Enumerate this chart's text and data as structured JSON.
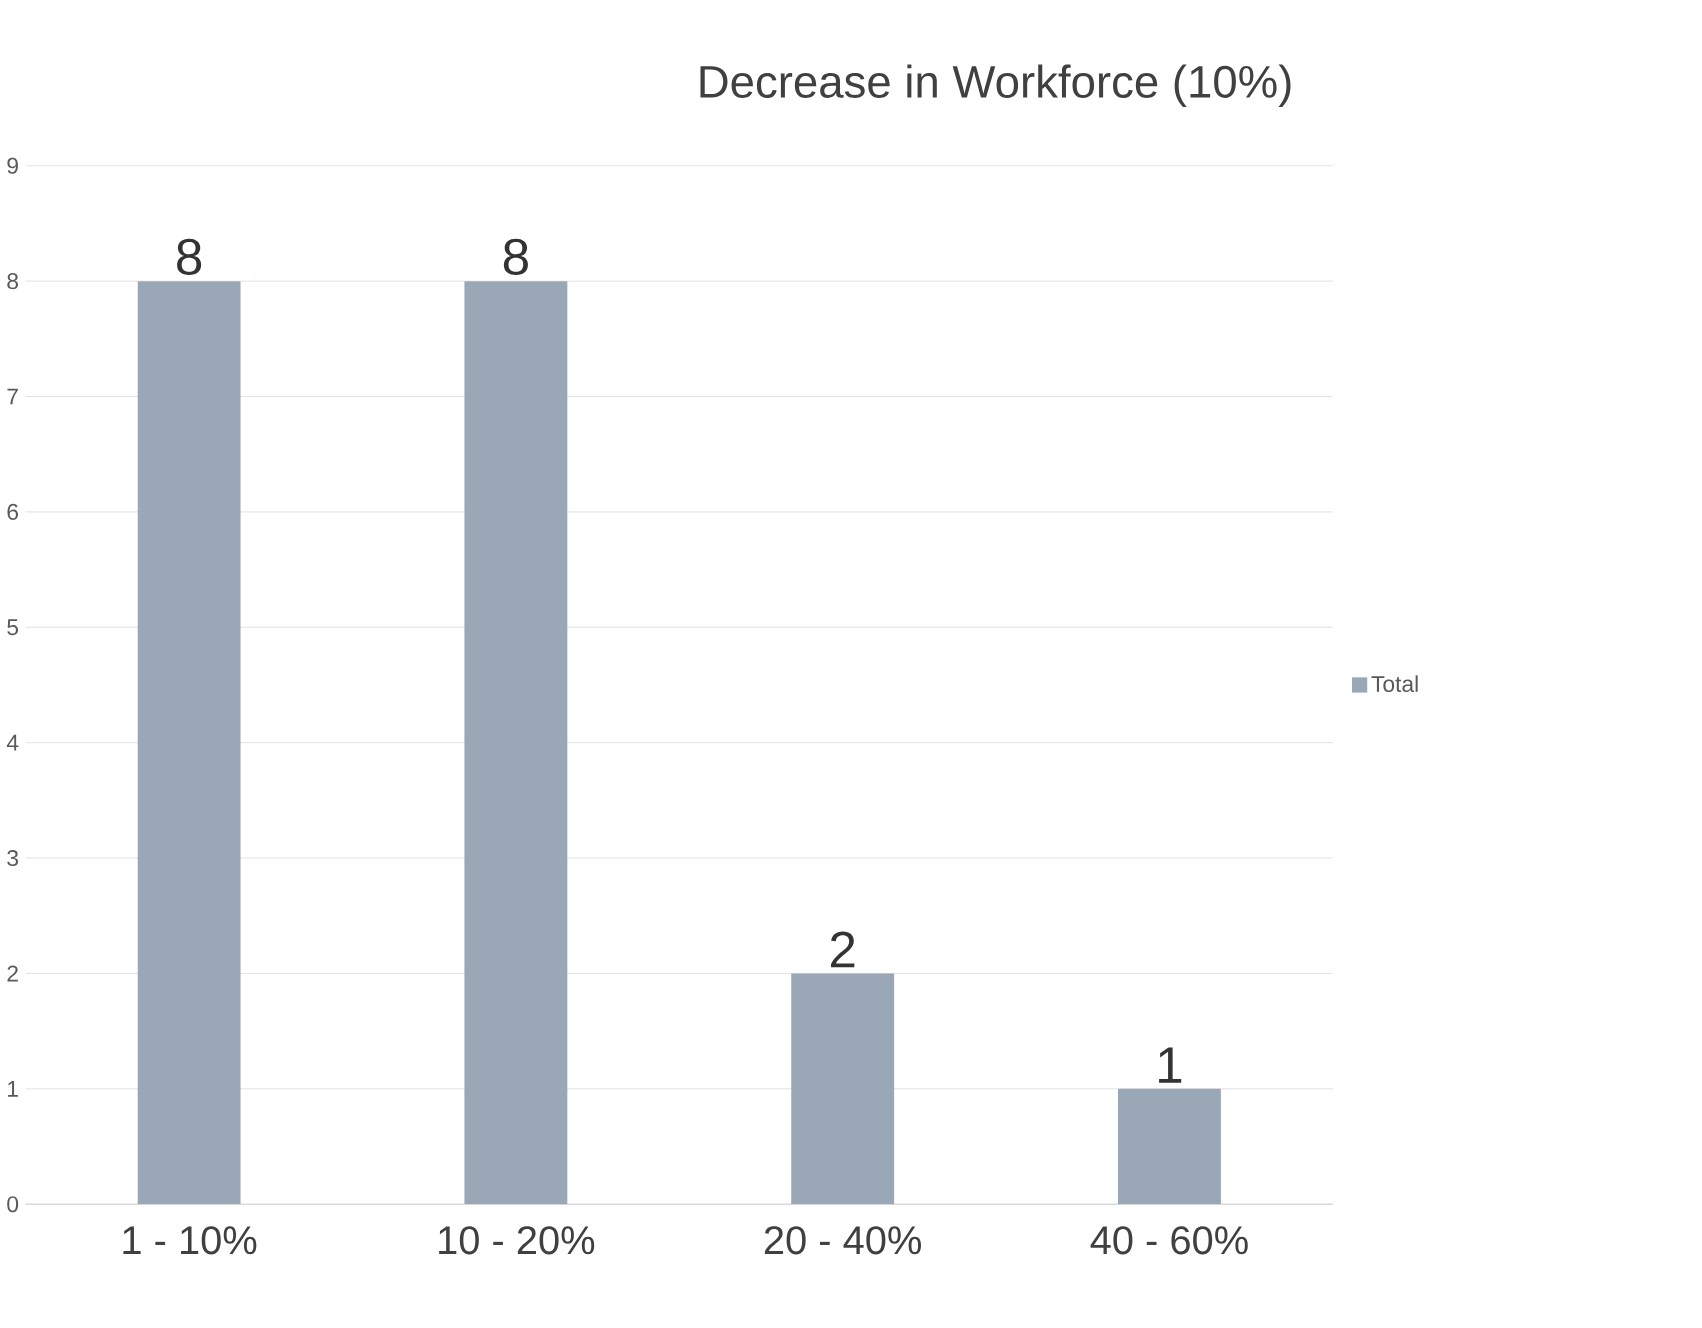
{
  "chart_data": {
    "type": "bar",
    "title": "Decrease in Workforce (10%)",
    "categories": [
      "1 - 10%",
      "10 - 20%",
      "20 - 40%",
      "40 - 60%"
    ],
    "series": [
      {
        "name": "Total",
        "color": "#9aa7b7",
        "values": [
          8,
          8,
          2,
          1
        ]
      }
    ],
    "ylim": [
      0,
      9
    ],
    "yticks": [
      0,
      1,
      2,
      3,
      4,
      5,
      6,
      7,
      8,
      9
    ],
    "grid": "y",
    "legend": "right",
    "data_labels": true
  }
}
